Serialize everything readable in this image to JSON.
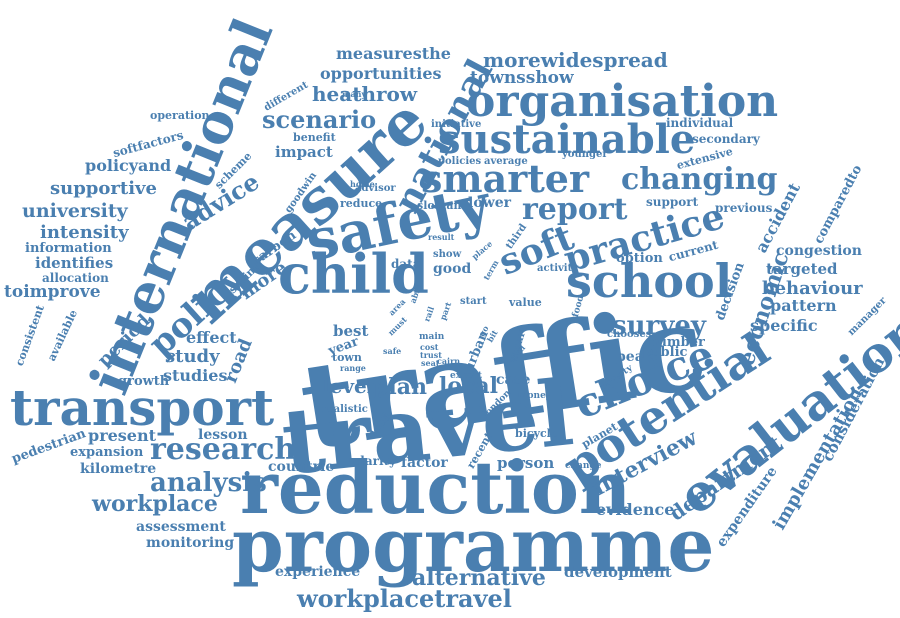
{
  "title": "Word cloud",
  "color": "#4a7fb0",
  "words": [
    {
      "text": "traffic"
    },
    {
      "text": "travel"
    },
    {
      "text": "reduction"
    },
    {
      "text": "programme"
    },
    {
      "text": "international"
    },
    {
      "text": "measure"
    },
    {
      "text": "transport"
    },
    {
      "text": "safety"
    },
    {
      "text": "child"
    },
    {
      "text": "evaluation"
    },
    {
      "text": "potential"
    },
    {
      "text": "organisation"
    },
    {
      "text": "sustainable"
    },
    {
      "text": "smarter"
    },
    {
      "text": "school"
    },
    {
      "text": "choice"
    },
    {
      "text": "practice"
    },
    {
      "text": "soft"
    },
    {
      "text": "national"
    },
    {
      "text": "policy"
    },
    {
      "text": "research"
    },
    {
      "text": "report"
    },
    {
      "text": "changing"
    },
    {
      "text": "workplacetravel"
    },
    {
      "text": "survey"
    },
    {
      "text": "analysis"
    },
    {
      "text": "workplace"
    },
    {
      "text": "alternative"
    },
    {
      "text": "interview"
    },
    {
      "text": "department"
    },
    {
      "text": "economic"
    },
    {
      "text": "advice"
    },
    {
      "text": "scenario"
    },
    {
      "text": "heathrow"
    },
    {
      "text": "morewidespread"
    },
    {
      "text": "measuresthe"
    },
    {
      "text": "opportunities"
    },
    {
      "text": "townsshow"
    },
    {
      "text": "university"
    },
    {
      "text": "supportive"
    },
    {
      "text": "policyand"
    },
    {
      "text": "intensity"
    },
    {
      "text": "information"
    },
    {
      "text": "identifies"
    },
    {
      "text": "allocation"
    },
    {
      "text": "toimprove"
    },
    {
      "text": "present"
    },
    {
      "text": "expansion"
    },
    {
      "text": "kilometre"
    },
    {
      "text": "pedestrian"
    },
    {
      "text": "assessment"
    },
    {
      "text": "monitoring"
    },
    {
      "text": "experience"
    },
    {
      "text": "development"
    },
    {
      "text": "evidence"
    },
    {
      "text": "implementation"
    },
    {
      "text": "consideration"
    },
    {
      "text": "expenditure"
    },
    {
      "text": "behaviour"
    },
    {
      "text": "pattern"
    },
    {
      "text": "targeted"
    },
    {
      "text": "congestion"
    },
    {
      "text": "specific"
    },
    {
      "text": "accident"
    },
    {
      "text": "comparedto"
    },
    {
      "text": "previous"
    },
    {
      "text": "decision"
    },
    {
      "text": "option"
    },
    {
      "text": "current"
    },
    {
      "text": "number"
    },
    {
      "text": "public"
    },
    {
      "text": "peak"
    },
    {
      "text": "person"
    },
    {
      "text": "factor"
    },
    {
      "text": "countrie"
    },
    {
      "text": "local"
    },
    {
      "text": "case"
    },
    {
      "text": "plan"
    },
    {
      "text": "level"
    },
    {
      "text": "study"
    },
    {
      "text": "studies"
    },
    {
      "text": "road"
    },
    {
      "text": "effect"
    },
    {
      "text": "period"
    },
    {
      "text": "lesson"
    },
    {
      "text": "growth"
    },
    {
      "text": "more"
    },
    {
      "text": "carbon"
    },
    {
      "text": "saving"
    },
    {
      "text": "impact"
    },
    {
      "text": "benefit"
    },
    {
      "text": "scheme"
    },
    {
      "text": "softfactors"
    },
    {
      "text": "operation"
    },
    {
      "text": "different"
    },
    {
      "text": "initiative"
    },
    {
      "text": "individual"
    },
    {
      "text": "secondary"
    },
    {
      "text": "extensive"
    },
    {
      "text": "younger"
    },
    {
      "text": "policies"
    },
    {
      "text": "average"
    },
    {
      "text": "advisor"
    },
    {
      "text": "reduce"
    },
    {
      "text": "sloman"
    },
    {
      "text": "lower"
    },
    {
      "text": "support"
    },
    {
      "text": "good"
    },
    {
      "text": "data"
    },
    {
      "text": "show"
    },
    {
      "text": "third"
    },
    {
      "text": "activity"
    },
    {
      "text": "start"
    },
    {
      "text": "value"
    },
    {
      "text": "best"
    },
    {
      "text": "year"
    },
    {
      "text": "town"
    },
    {
      "text": "urban"
    },
    {
      "text": "smart"
    },
    {
      "text": "chooses"
    },
    {
      "text": "realistic"
    },
    {
      "text": "expert"
    },
    {
      "text": "london"
    },
    {
      "text": "money"
    },
    {
      "text": "bicycle"
    },
    {
      "text": "planet"
    },
    {
      "text": "need"
    },
    {
      "text": "recent"
    },
    {
      "text": "clarity"
    },
    {
      "text": "change"
    },
    {
      "text": "goodwin"
    },
    {
      "text": "consistent"
    },
    {
      "text": "available"
    },
    {
      "text": "manager"
    },
    {
      "text": "poverty"
    },
    {
      "text": "food"
    },
    {
      "text": "range"
    },
    {
      "text": "main"
    },
    {
      "text": "cost"
    },
    {
      "text": "trust"
    },
    {
      "text": "seat"
    },
    {
      "text": "safe"
    },
    {
      "text": "must"
    },
    {
      "text": "area"
    },
    {
      "text": "able"
    },
    {
      "text": "rail"
    },
    {
      "text": "part"
    },
    {
      "text": "term"
    },
    {
      "text": "place"
    },
    {
      "text": "result"
    },
    {
      "text": "april"
    },
    {
      "text": "cairn"
    },
    {
      "text": "go"
    },
    {
      "text": "bit"
    },
    {
      "text": "many"
    },
    {
      "text": "home"
    }
  ]
}
